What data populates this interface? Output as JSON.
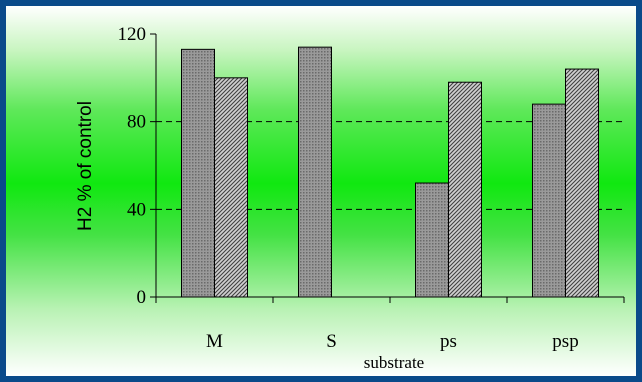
{
  "chart_data": {
    "type": "bar",
    "categories": [
      "M",
      "S",
      "ps",
      "psp"
    ],
    "series": [
      {
        "values": [
          113,
          114,
          52,
          88
        ],
        "color": "#a0a0a0",
        "pattern": "dots"
      },
      {
        "values": [
          100,
          null,
          98,
          104
        ],
        "color": "#c8c8c8",
        "pattern": "diagonal"
      }
    ],
    "xlabel": "substrate",
    "ylabel": "H2 % of control",
    "ylim": [
      0,
      120
    ],
    "yticks": [
      0,
      40,
      80,
      120
    ],
    "grid": "dashed-horizontal"
  }
}
